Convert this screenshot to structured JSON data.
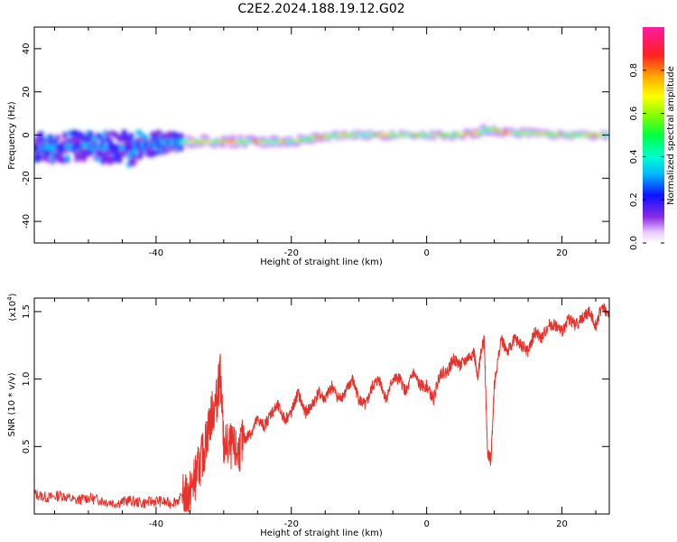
{
  "title": "C2E2.2024.188.19.12.G02",
  "chart_data": [
    {
      "type": "heatmap",
      "xlabel": "Height of straight line (km)",
      "ylabel": "Frequency (Hz)",
      "xlim": [
        -58,
        27
      ],
      "ylim": [
        -50,
        50
      ],
      "xticks": [
        -40,
        -20,
        0,
        20
      ],
      "yticks": [
        -40,
        -20,
        0,
        20,
        40
      ],
      "colorbar": {
        "label": "Normalized spectral amplitude",
        "range": [
          0,
          1
        ],
        "ticks": [
          0.0,
          0.2,
          0.4,
          0.6,
          0.8
        ],
        "tick_labels": [
          "0.0",
          "0.2",
          "0.4",
          "0.6",
          "0.8"
        ]
      },
      "ridge": {
        "x": [
          -58,
          -50,
          -44,
          -38,
          -33,
          -28,
          -24,
          -20,
          -16,
          -12,
          -8,
          -4,
          0,
          4,
          8,
          9,
          12,
          16,
          20,
          24,
          27
        ],
        "freq": [
          -6,
          -5,
          -6,
          -3,
          -3,
          -3,
          -3,
          -3,
          -1,
          0,
          0,
          0,
          0,
          0,
          1,
          3,
          1,
          1,
          0,
          0,
          0
        ],
        "width": [
          5,
          5,
          6,
          3,
          3,
          3,
          3,
          3,
          2,
          2,
          2,
          2,
          2,
          2,
          3,
          3,
          2,
          2,
          2,
          2,
          2
        ]
      }
    },
    {
      "type": "line",
      "xlabel": "Height of straight line (km)",
      "ylabel": "SNR (10 * v/v)",
      "y_multiplier_label": "(x10",
      "y_multiplier_exp": "4",
      "y_multiplier_close": ")",
      "xlim": [
        -58,
        27
      ],
      "ylim": [
        0,
        1.6
      ],
      "xticks": [
        -40,
        -20,
        0,
        20
      ],
      "yticks": [
        0.5,
        1.0,
        1.5
      ],
      "ytick_labels": [
        "0.5",
        "1.0",
        "1.5"
      ],
      "series": [
        {
          "color": "#e8312a",
          "x": [
            -58,
            -56,
            -54,
            -52,
            -50,
            -48,
            -46,
            -44,
            -42,
            -40,
            -38,
            -36,
            -35,
            -34,
            -33,
            -32,
            -31,
            -30.5,
            -30,
            -29,
            -28,
            -27,
            -26,
            -25,
            -24,
            -23,
            -22,
            -21,
            -20,
            -19,
            -18,
            -17,
            -16,
            -15,
            -14,
            -13,
            -12,
            -11,
            -10,
            -9,
            -8,
            -7,
            -6,
            -5,
            -4,
            -3,
            -2,
            -1,
            0,
            1,
            2,
            3,
            4,
            5,
            6,
            7,
            7.5,
            8,
            8.5,
            9,
            9.5,
            10,
            11,
            12,
            13,
            14,
            15,
            16,
            17,
            18,
            19,
            20,
            21,
            22,
            23,
            24,
            25,
            26,
            27
          ],
          "y": [
            0.15,
            0.12,
            0.14,
            0.1,
            0.12,
            0.1,
            0.08,
            0.1,
            0.08,
            0.1,
            0.08,
            0.12,
            0.15,
            0.3,
            0.45,
            0.7,
            0.85,
            1.05,
            0.5,
            0.5,
            0.45,
            0.55,
            0.6,
            0.7,
            0.65,
            0.75,
            0.8,
            0.7,
            0.75,
            0.9,
            0.75,
            0.8,
            0.9,
            0.85,
            0.95,
            0.85,
            0.9,
            1.0,
            0.85,
            0.8,
            0.95,
            1.0,
            0.85,
            1.0,
            1.0,
            0.9,
            1.05,
            0.95,
            0.95,
            0.85,
            1.05,
            1.05,
            1.15,
            1.1,
            1.15,
            1.2,
            1.0,
            1.2,
            1.3,
            0.45,
            0.4,
            0.95,
            1.3,
            1.2,
            1.3,
            1.25,
            1.2,
            1.35,
            1.3,
            1.4,
            1.4,
            1.35,
            1.45,
            1.4,
            1.45,
            1.5,
            1.4,
            1.55,
            1.45
          ]
        }
      ]
    }
  ]
}
